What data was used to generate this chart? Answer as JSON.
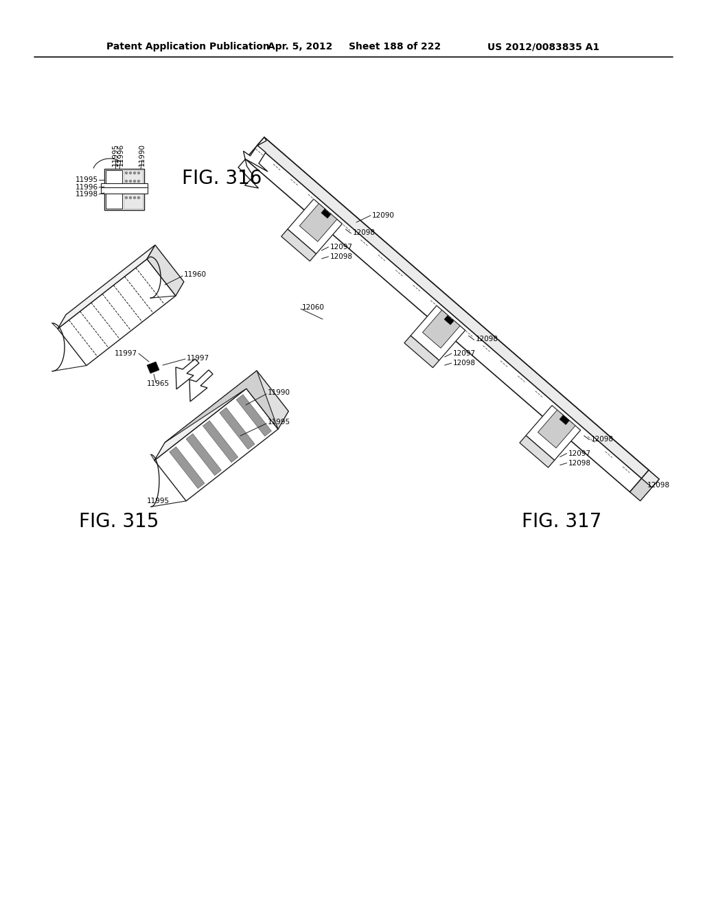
{
  "title_left": "Patent Application Publication",
  "title_date": "Apr. 5, 2012",
  "title_sheet": "Sheet 188 of 222",
  "title_patent": "US 2012/0083835 A1",
  "fig315": "FIG. 315",
  "fig316": "FIG. 316",
  "fig317": "FIG. 317",
  "bg": "#ffffff",
  "lc": "#1a1a1a",
  "header_fs": 10,
  "fig_fs": 20,
  "ref_fs": 7.5
}
